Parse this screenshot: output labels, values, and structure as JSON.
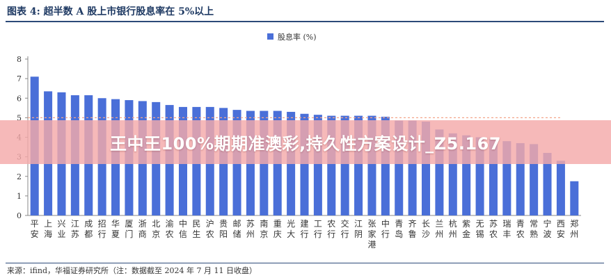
{
  "header": {
    "figure_title": "图表 4: 超半数 A 股上市银行股息率在 5%以上"
  },
  "footer": {
    "source": "来源：ifind，华福证券研究所（注：数据截至 2024 年 7 月 11 日收盘）"
  },
  "overlay": {
    "banner_text": "王中王100%期期准澳彩,持久性方案设计_Z5.167"
  },
  "colors": {
    "bar": "#4a6fd8",
    "reference_line": "#f4a58a",
    "axis": "#888888",
    "text": "#333333"
  },
  "chart_data": {
    "type": "bar",
    "title": "",
    "xlabel": "",
    "ylabel": "",
    "ylim": [
      0,
      8
    ],
    "yticks": [
      0,
      1,
      2,
      3,
      4,
      5,
      6,
      7,
      8
    ],
    "grid": false,
    "legend_position": "top-center",
    "reference_line": 5,
    "categories": [
      "平安",
      "上海",
      "兴业",
      "江苏",
      "成都",
      "招行",
      "华夏",
      "厦门",
      "浙商",
      "北京",
      "渝农",
      "中信",
      "民生",
      "沪农",
      "贵阳",
      "邮储",
      "苏州",
      "南京",
      "重庆",
      "光大",
      "建行",
      "工行",
      "农行",
      "交行",
      "江阴",
      "张家港",
      "中行",
      "青岛",
      "齐鲁",
      "长沙",
      "兰州",
      "杭州",
      "紫金",
      "无锡",
      "苏农",
      "瑞丰",
      "青农",
      "常熟",
      "宁波",
      "西安",
      "郑州"
    ],
    "series": [
      {
        "name": "股息率 (%)",
        "values": [
          7.1,
          6.35,
          6.3,
          6.15,
          6.15,
          6.0,
          5.95,
          5.9,
          5.85,
          5.8,
          5.65,
          5.55,
          5.55,
          5.55,
          5.5,
          5.4,
          5.35,
          5.35,
          5.35,
          5.3,
          5.2,
          5.15,
          5.1,
          5.1,
          5.1,
          5.1,
          5.05,
          4.85,
          4.85,
          4.8,
          4.4,
          4.2,
          4.1,
          4.0,
          3.9,
          3.8,
          3.7,
          3.65,
          3.2,
          2.8,
          1.75
        ]
      }
    ]
  }
}
